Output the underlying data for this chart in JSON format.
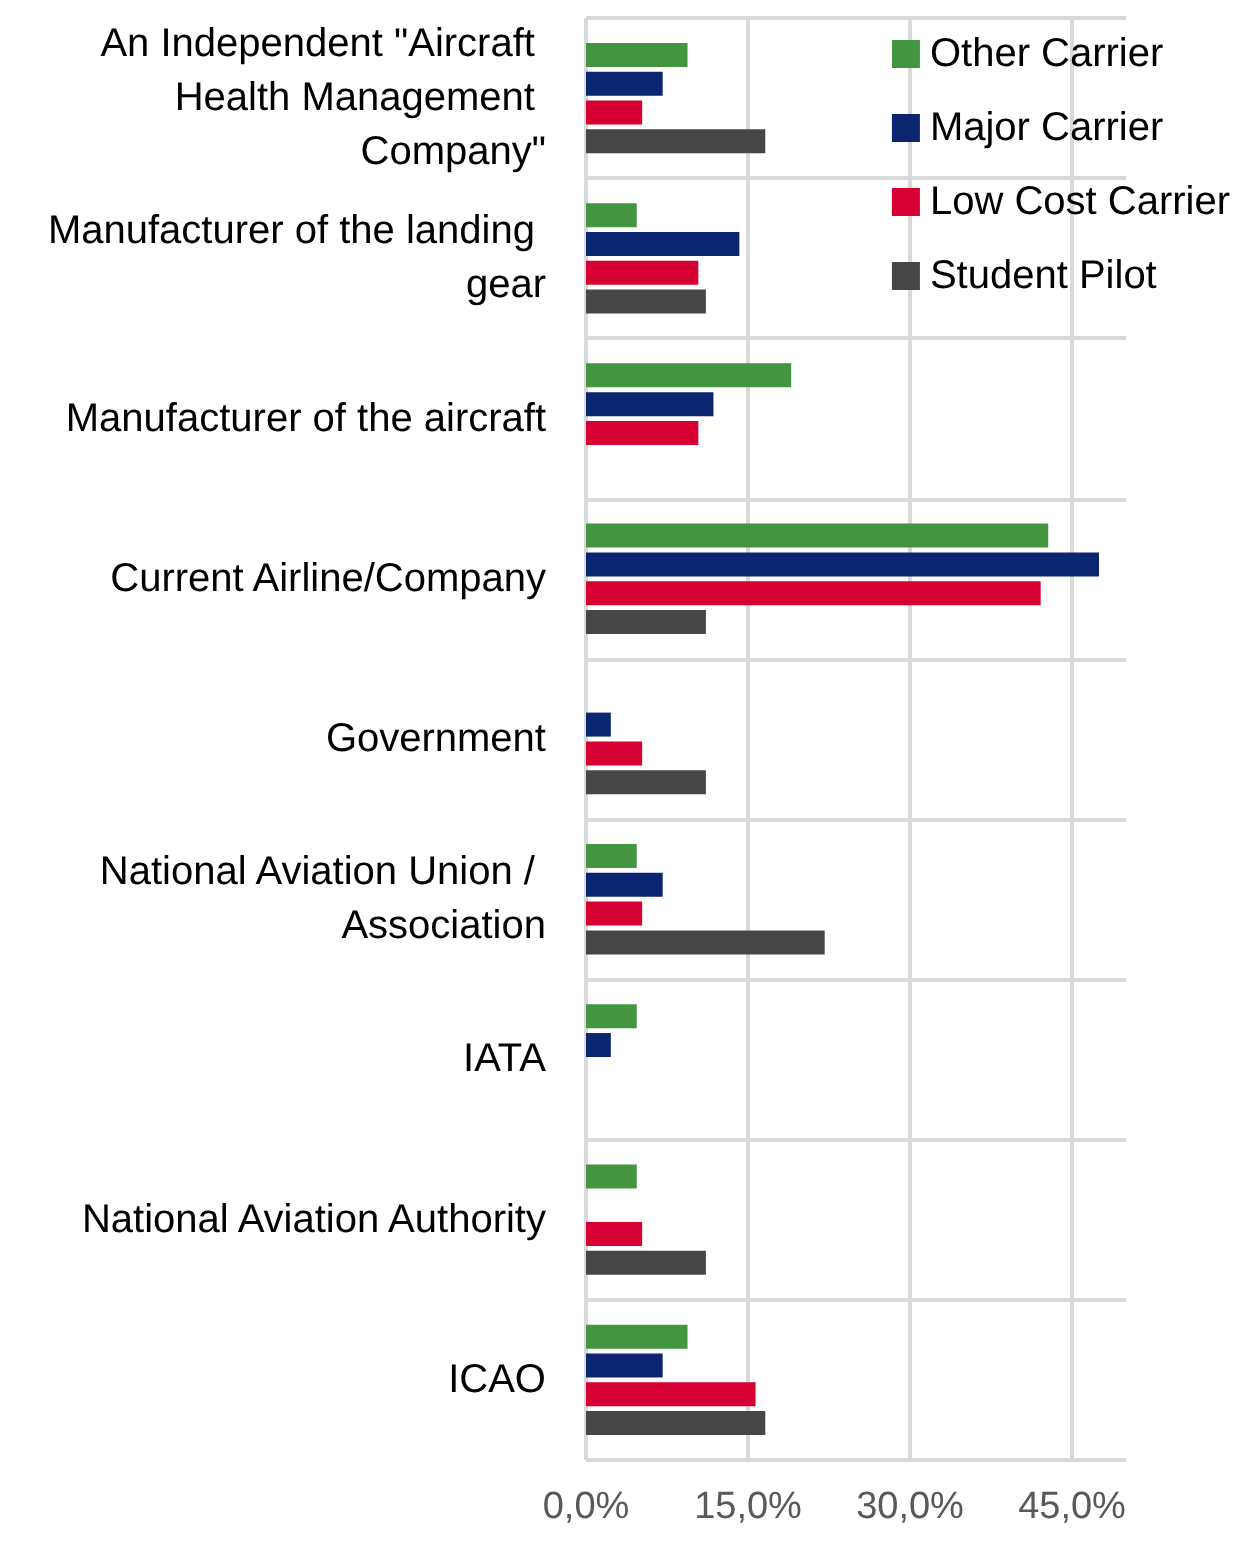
{
  "chart_data": {
    "type": "bar",
    "orientation": "horizontal",
    "categories": [
      "An Independent \"Aircraft Health Management Company\"",
      "Manufacturer of the landing gear",
      "Manufacturer of the aircraft",
      "Current Airline/Company",
      "Government",
      "National Aviation Union / Association",
      "IATA",
      "National Aviation Authority",
      "ICAO"
    ],
    "series": [
      {
        "name": "Other Carrier",
        "color": "#43963f",
        "values": [
          9.4,
          4.7,
          19.0,
          42.8,
          null,
          4.7,
          4.7,
          4.7,
          9.4
        ]
      },
      {
        "name": "Major Carrier",
        "color": "#0b2570",
        "values": [
          7.1,
          14.2,
          11.8,
          47.5,
          2.3,
          7.1,
          2.3,
          null,
          7.1
        ]
      },
      {
        "name": "Low Cost Carrier",
        "color": "#d60032",
        "values": [
          5.2,
          10.4,
          10.4,
          42.1,
          5.2,
          5.2,
          null,
          5.2,
          15.7
        ]
      },
      {
        "name": "Student Pilot",
        "color": "#464646",
        "values": [
          16.6,
          11.1,
          null,
          11.1,
          11.1,
          22.1,
          null,
          11.1,
          16.6
        ]
      }
    ],
    "xlim": [
      0,
      50
    ],
    "xticks": [
      {
        "value": 0,
        "label": "0,0%"
      },
      {
        "value": 15,
        "label": "15,0%"
      },
      {
        "value": 30,
        "label": "30,0%"
      },
      {
        "value": 45,
        "label": "45,0%"
      }
    ],
    "grid": true,
    "legend": "top right"
  }
}
